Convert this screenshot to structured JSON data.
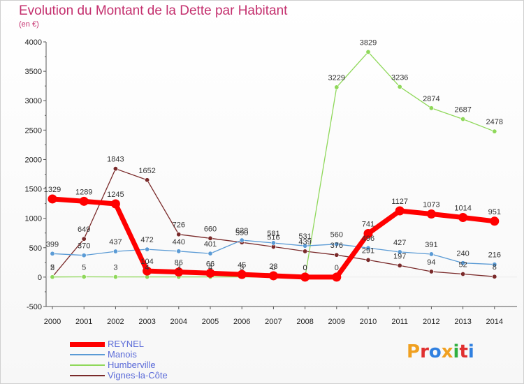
{
  "header": {
    "title": "Evolution du Montant de la Dette par Habitant",
    "subtitle": "(en €)"
  },
  "brand": {
    "logo_text": "Proxiti",
    "letters": [
      {
        "ch": "P",
        "color": "#f0a020"
      },
      {
        "ch": "r",
        "color": "#e03030"
      },
      {
        "ch": "o",
        "color": "#3080e0"
      },
      {
        "ch": "x",
        "color": "#f0a020"
      },
      {
        "ch": "i",
        "color": "#30b040"
      },
      {
        "ch": "t",
        "color": "#e03030"
      },
      {
        "ch": "i",
        "color": "#3080e0"
      }
    ]
  },
  "chart_data": {
    "type": "line",
    "title": "Evolution du Montant de la Dette par Habitant",
    "subtitle": "(en €)",
    "x": [
      "2000",
      "2001",
      "2002",
      "2003",
      "2004",
      "2005",
      "2006",
      "2007",
      "2008",
      "2009",
      "2010",
      "2011",
      "2012",
      "2013",
      "2014"
    ],
    "ylim": [
      -500,
      4000
    ],
    "yticks": [
      -500,
      0,
      500,
      1000,
      1500,
      2000,
      2500,
      3000,
      3500,
      4000
    ],
    "grid": false,
    "legend_position": "bottom-left",
    "series": [
      {
        "name": "REYNEL",
        "color": "#ff0000",
        "values": [
          1329,
          1289,
          1245,
          104,
          86,
          66,
          45,
          23,
          0,
          0,
          741,
          1127,
          1073,
          1014,
          951
        ]
      },
      {
        "name": "Manois",
        "color": "#5b9bd5",
        "values": [
          399,
          370,
          437,
          472,
          440,
          401,
          628,
          581,
          531,
          560,
          496,
          427,
          391,
          240,
          216
        ]
      },
      {
        "name": "Humberville",
        "color": "#8fd85a",
        "values": [
          2,
          5,
          3,
          4,
          3,
          4,
          3,
          0,
          0,
          3229,
          3829,
          3236,
          2874,
          2687,
          2478
        ]
      },
      {
        "name": "Vignes-la-Côte",
        "color": "#7a2a2a",
        "values": [
          5,
          649,
          1843,
          1652,
          726,
          660,
          590,
          516,
          439,
          376,
          291,
          197,
          94,
          52,
          8
        ]
      }
    ],
    "data_labels": {
      "REYNEL": [
        "1329",
        "1289",
        "1245",
        "104",
        "86",
        "66",
        "45",
        "23",
        "0",
        "0",
        "741",
        "1127",
        "1073",
        "1014",
        "951"
      ],
      "Manois": [
        "399",
        "370",
        "437",
        "472",
        "440",
        "401",
        "628",
        "581",
        "531",
        "560",
        "496",
        "427",
        "391",
        "240",
        "216"
      ],
      "Humberville": [
        "2",
        "5",
        "3",
        "4",
        "3",
        "4",
        "3",
        "0",
        "0",
        "3229",
        "3829",
        "3236",
        "2874",
        "2687",
        "2478"
      ],
      "Vignes-la-Côte": [
        "5",
        "649",
        "1843",
        "1652",
        "726",
        "660",
        "590",
        "516",
        "439",
        "376",
        "291",
        "197",
        "94",
        "52",
        "8"
      ]
    }
  }
}
